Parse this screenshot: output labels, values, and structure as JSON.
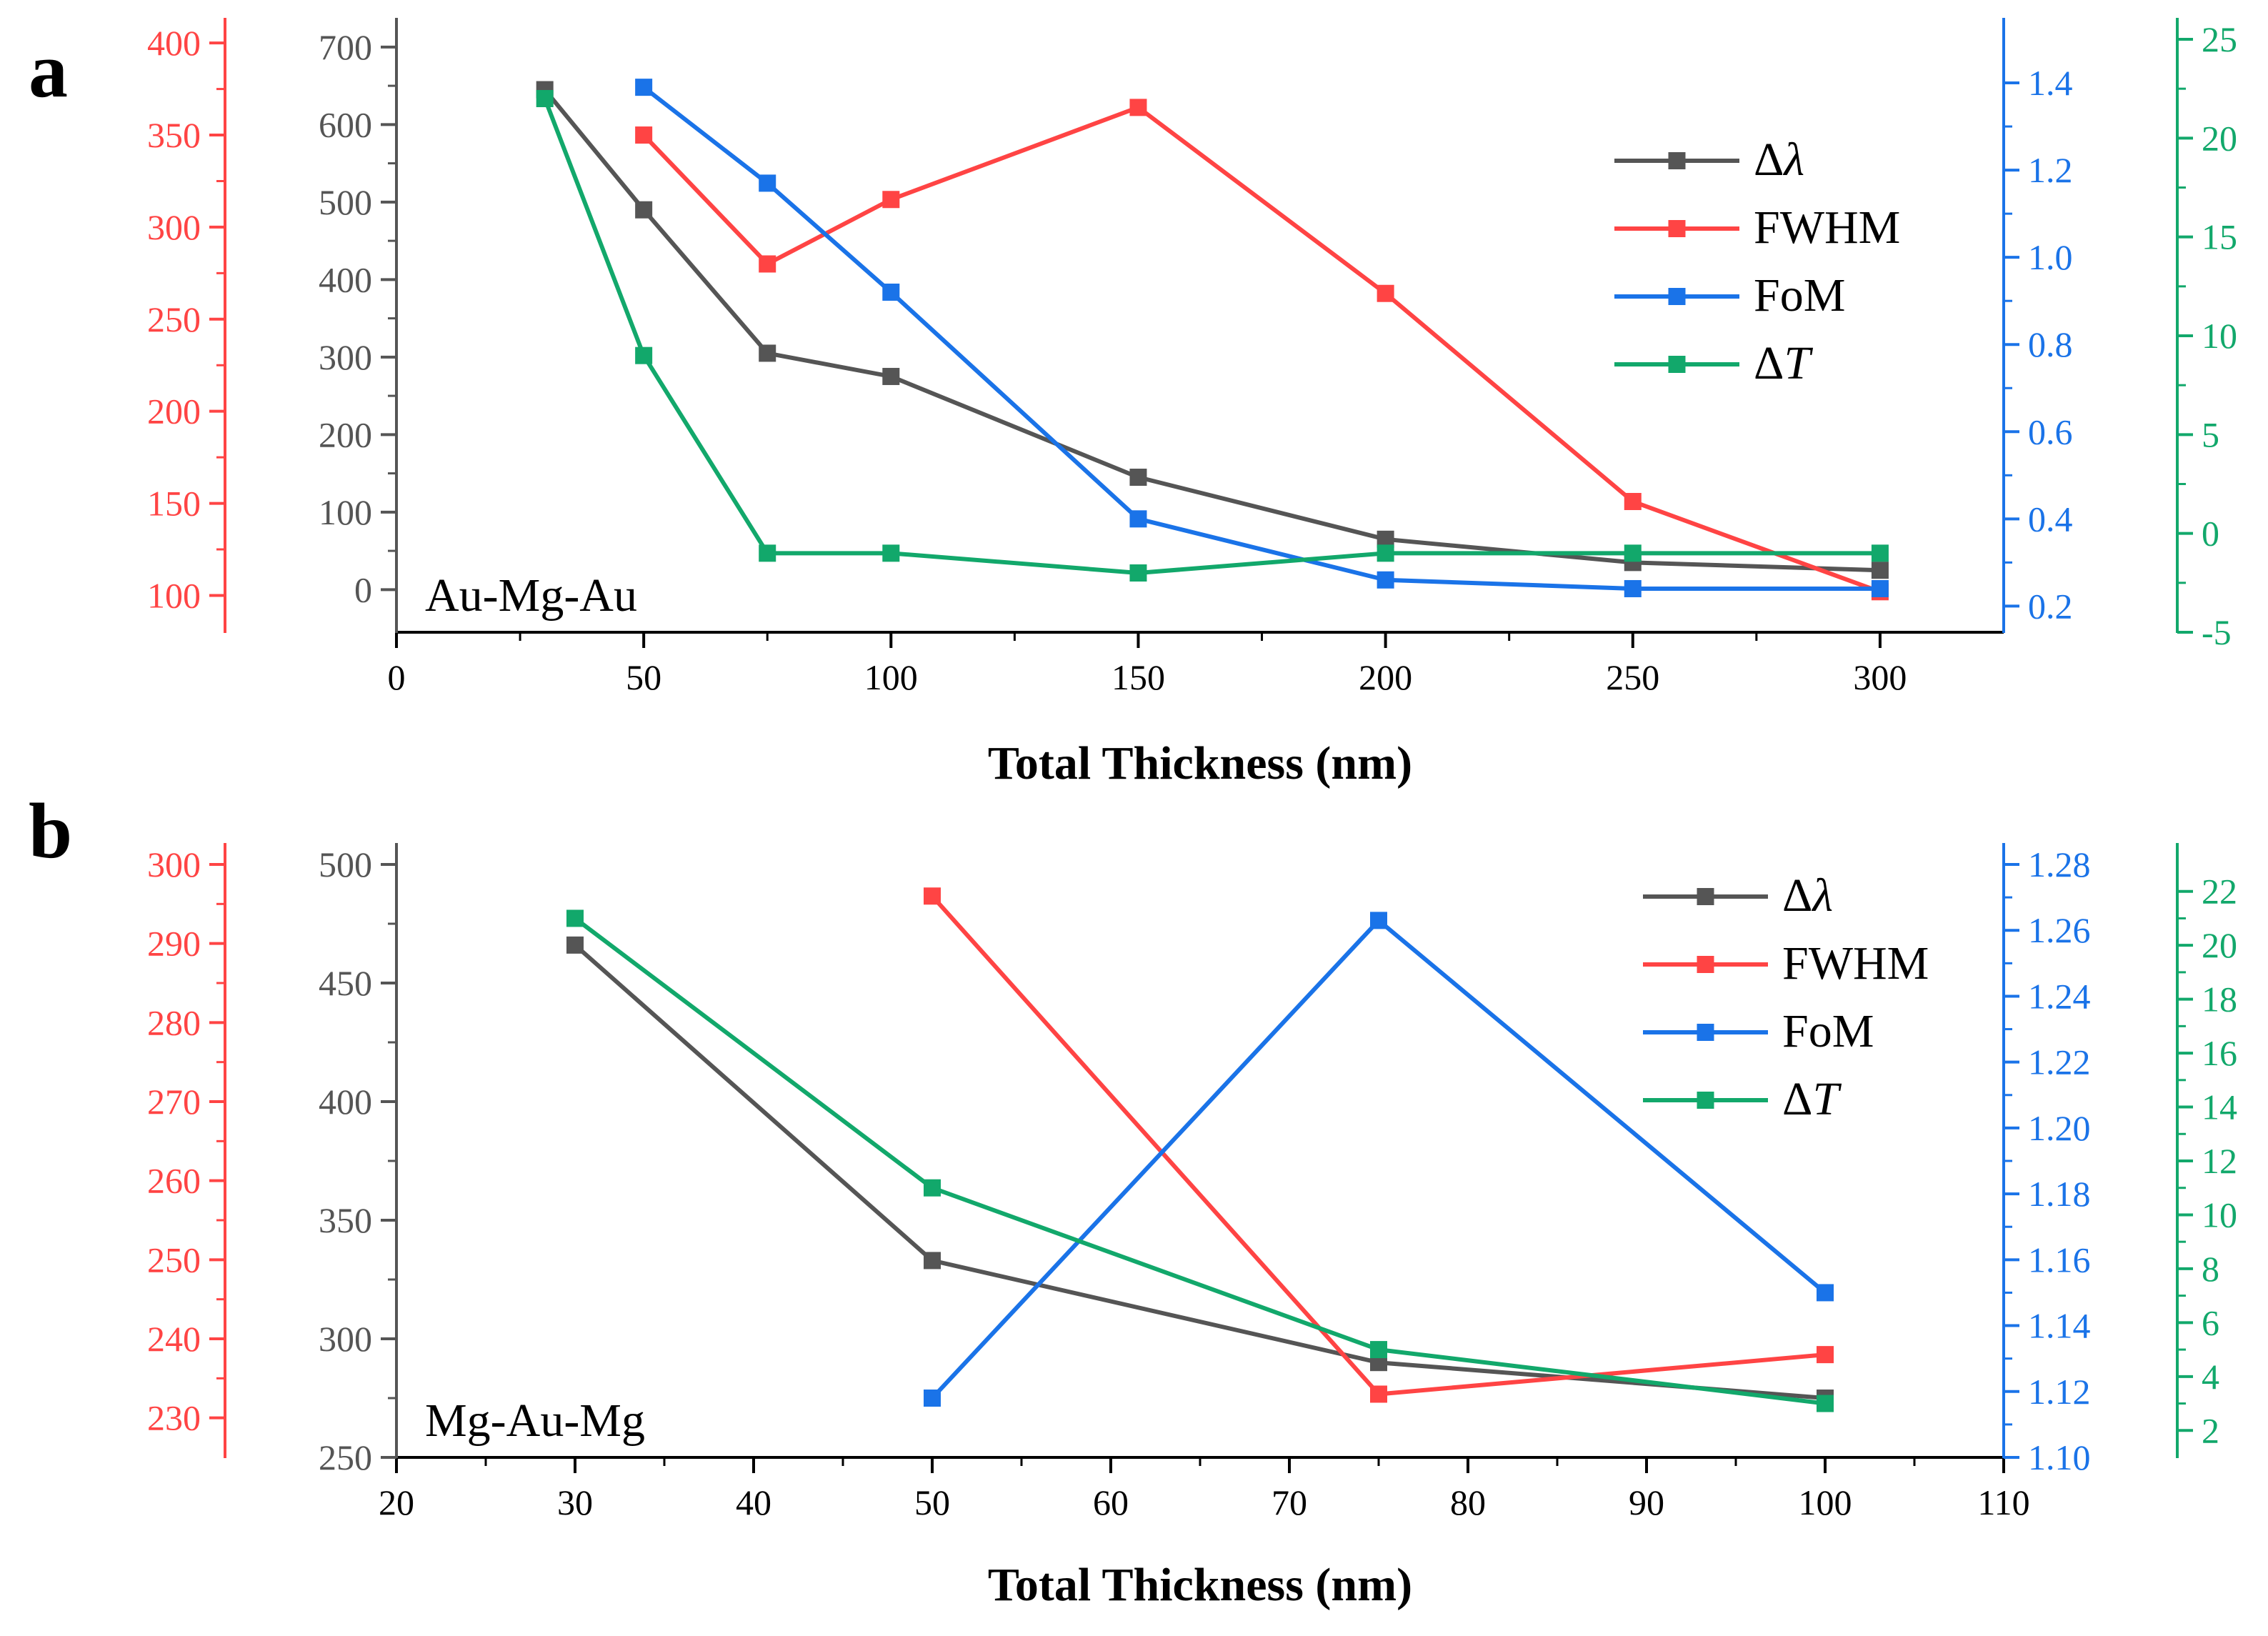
{
  "chart_data": [
    {
      "panel": "a",
      "type": "line",
      "annotation": "Au-Mg-Au",
      "xlabel": "Total Thickness (nm)",
      "xlim": [
        0,
        325
      ],
      "xticks": [
        0,
        50,
        100,
        150,
        200,
        250,
        300
      ],
      "legend_position": "top-right",
      "axes": {
        "left_black": {
          "range": [
            -55,
            710
          ],
          "ticks": [
            0,
            100,
            200,
            300,
            400,
            500,
            600,
            700
          ],
          "color": "#555555"
        },
        "left_red": {
          "range": [
            80,
            402
          ],
          "ticks": [
            100,
            150,
            200,
            250,
            300,
            350,
            400
          ],
          "color": "#ff4444"
        },
        "right_blue": {
          "range": [
            0.14,
            1.5
          ],
          "ticks": [
            "0.2",
            "0.4",
            "0.6",
            "0.8",
            "1.0",
            "1.2",
            "1.4"
          ],
          "color": "#1a73e8"
        },
        "right_green": {
          "range": [
            -5,
            25
          ],
          "ticks": [
            -5,
            0,
            5,
            10,
            15,
            20,
            25
          ],
          "color": "#12a86b"
        }
      },
      "series": [
        {
          "name": "Δλ",
          "symbol": "λ",
          "axis": "left_black",
          "color": "#555555",
          "x": [
            30,
            50,
            75,
            100,
            150,
            200,
            250,
            300
          ],
          "values": [
            645,
            490,
            305,
            275,
            145,
            65,
            35,
            25
          ]
        },
        {
          "name": "FWHM",
          "axis": "left_red",
          "color": "#ff4444",
          "x": [
            50,
            75,
            100,
            150,
            200,
            250,
            300
          ],
          "values": [
            350,
            280,
            315,
            365,
            264,
            151,
            102
          ]
        },
        {
          "name": "FoM",
          "axis": "right_blue",
          "color": "#1a73e8",
          "x": [
            50,
            75,
            100,
            150,
            200,
            250,
            300
          ],
          "values": [
            1.39,
            1.17,
            0.92,
            0.4,
            0.26,
            0.24,
            0.24
          ]
        },
        {
          "name": "ΔT",
          "symbol": "T",
          "axis": "right_green",
          "color": "#12a86b",
          "x": [
            30,
            50,
            75,
            100,
            150,
            200,
            250,
            300
          ],
          "values": [
            22,
            9,
            -1,
            -1,
            -2,
            -1,
            -1,
            -1
          ]
        }
      ]
    },
    {
      "panel": "b",
      "type": "line",
      "annotation": "Mg-Au-Mg",
      "xlabel": "Total Thickness (nm)",
      "xlim": [
        20,
        110
      ],
      "xticks": [
        20,
        30,
        40,
        50,
        60,
        70,
        80,
        90,
        100,
        110
      ],
      "legend_position": "top-right",
      "axes": {
        "left_black": {
          "range": [
            250,
            500
          ],
          "ticks": [
            250,
            300,
            350,
            400,
            450,
            500
          ],
          "color": "#555555"
        },
        "left_red": {
          "range": [
            225,
            300
          ],
          "ticks": [
            230,
            240,
            250,
            260,
            270,
            280,
            290,
            300
          ],
          "color": "#ff4444"
        },
        "right_blue": {
          "range": [
            1.1,
            1.28
          ],
          "ticks": [
            "1.10",
            "1.12",
            "1.14",
            "1.16",
            "1.18",
            "1.20",
            "1.22",
            "1.24",
            "1.26",
            "1.28"
          ],
          "color": "#1a73e8"
        },
        "right_green": {
          "range": [
            1,
            23
          ],
          "ticks": [
            2,
            4,
            6,
            8,
            10,
            12,
            14,
            16,
            18,
            20,
            22
          ],
          "color": "#12a86b"
        }
      },
      "series": [
        {
          "name": "Δλ",
          "symbol": "λ",
          "axis": "left_black",
          "color": "#555555",
          "x": [
            30,
            50,
            75,
            100
          ],
          "values": [
            466,
            333,
            290,
            275
          ]
        },
        {
          "name": "FWHM",
          "axis": "left_red",
          "color": "#ff4444",
          "x": [
            50,
            75,
            100
          ],
          "values": [
            296,
            233,
            238
          ]
        },
        {
          "name": "FoM",
          "axis": "right_blue",
          "color": "#1a73e8",
          "x": [
            50,
            75,
            100
          ],
          "values": [
            1.118,
            1.263,
            1.15
          ]
        },
        {
          "name": "ΔT",
          "symbol": "T",
          "axis": "right_green",
          "color": "#12a86b",
          "x": [
            30,
            50,
            75,
            100
          ],
          "values": [
            21,
            11,
            5,
            3
          ]
        }
      ]
    }
  ]
}
